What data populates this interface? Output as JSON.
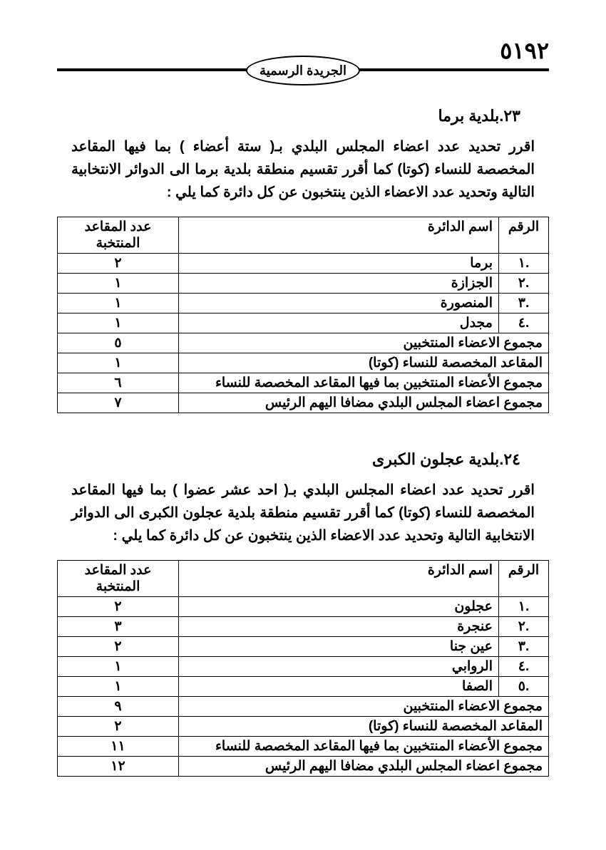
{
  "page_number": "٥١٩٢",
  "oval_title": "الجريدة الرسمية",
  "section1": {
    "title": "٢٣.بلدية برما",
    "paragraph": "اقرر تحديد عدد اعضاء المجلس البلدي بـ(  ستة أعضاء ) بما فيها المقاعد المخصصة للنساء (كوتا) كما أقرر تقسيم منطقة بلدية  برما الى الدوائر الانتخابية التالية وتحديد عدد الاعضاء الذين ينتخبون عن كل دائرة كما يلي :",
    "headers": {
      "num": "الرقم",
      "name": "اسم الدائرة",
      "seats": "عدد المقاعد المنتخبة"
    },
    "rows": [
      {
        "num": ".١",
        "name": "برما",
        "seats": "٢"
      },
      {
        "num": ".٢",
        "name": "الجزازة",
        "seats": "١"
      },
      {
        "num": ".٣",
        "name": "المنصورة",
        "seats": "١"
      },
      {
        "num": ".٤",
        "name": "مجدل",
        "seats": "١"
      }
    ],
    "summary": [
      {
        "label": "مجموع الاعضاء المنتخبين",
        "value": "٥"
      },
      {
        "label": "المقاعد المخصصة للنساء (كوتا)",
        "value": "١"
      },
      {
        "label": "مجموع الأعضاء المنتخبين بما فيها المقاعد المخصصة للنساء",
        "value": "٦"
      },
      {
        "label": "مجموع اعضاء المجلس البلدي مضافا اليهم الرئيس",
        "value": "٧"
      }
    ]
  },
  "section2": {
    "title": "٢٤.بلدية عجلون الكبرى",
    "paragraph": "اقرر تحديد عدد اعضاء المجلس البلدي بـ(  احد عشر عضوا ) بما فيها المقاعد المخصصة للنساء (كوتا) كما أقرر تقسيم منطقة بلدية  عجلون الكبرى الى الدوائر الانتخابية التالية وتحديد عدد الاعضاء الذين ينتخبون عن كل دائرة كما يلي :",
    "headers": {
      "num": "الرقم",
      "name": "اسم الدائرة",
      "seats": "عدد المقاعد المنتخبة"
    },
    "rows": [
      {
        "num": ".١",
        "name": "عجلون",
        "seats": "٢"
      },
      {
        "num": ".٢",
        "name": "عنجرة",
        "seats": "٣"
      },
      {
        "num": ".٣",
        "name": "عين جنا",
        "seats": "٢"
      },
      {
        "num": ".٤",
        "name": "الروابي",
        "seats": "١"
      },
      {
        "num": ".٥",
        "name": "الصفا",
        "seats": "١"
      }
    ],
    "summary": [
      {
        "label": "مجموع الاعضاء المنتخبين",
        "value": "٩"
      },
      {
        "label": "المقاعد المخصصة للنساء (كوتا)",
        "value": "٢"
      },
      {
        "label": "مجموع الأعضاء المنتخبين بما فيها المقاعد المخصصة للنساء",
        "value": "١١"
      },
      {
        "label": "مجموع اعضاء المجلس البلدي مضافا اليهم الرئيس",
        "value": "١٢"
      }
    ]
  }
}
